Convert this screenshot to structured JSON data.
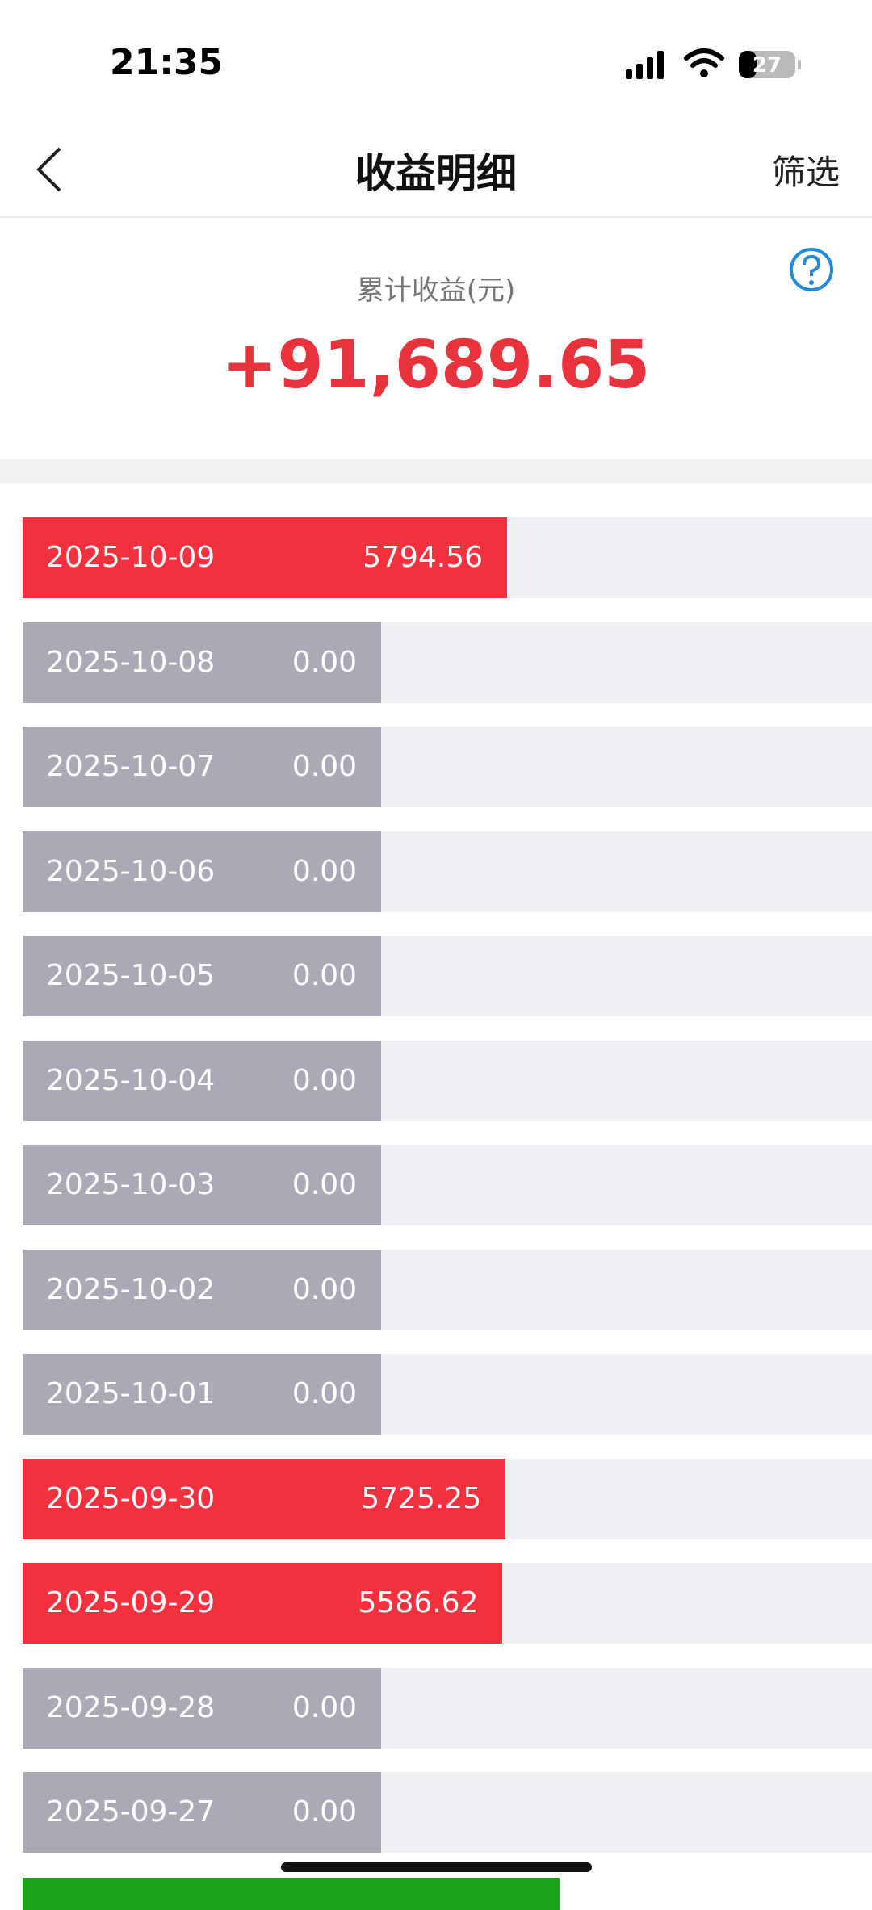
{
  "status_bar": {
    "time": "21:35",
    "battery": "27"
  },
  "nav": {
    "title": "收益明细",
    "filter": "筛选"
  },
  "summary": {
    "label": "累计收益(元)",
    "total": "+91,689.65"
  },
  "rows": [
    {
      "date": "2025-10-09",
      "amount": "5794.56"
    },
    {
      "date": "2025-10-08",
      "amount": "0.00"
    },
    {
      "date": "2025-10-07",
      "amount": "0.00"
    },
    {
      "date": "2025-10-06",
      "amount": "0.00"
    },
    {
      "date": "2025-10-05",
      "amount": "0.00"
    },
    {
      "date": "2025-10-04",
      "amount": "0.00"
    },
    {
      "date": "2025-10-03",
      "amount": "0.00"
    },
    {
      "date": "2025-10-02",
      "amount": "0.00"
    },
    {
      "date": "2025-10-01",
      "amount": "0.00"
    },
    {
      "date": "2025-09-30",
      "amount": "5725.25"
    },
    {
      "date": "2025-09-29",
      "amount": "5586.62"
    },
    {
      "date": "2025-09-28",
      "amount": "0.00"
    },
    {
      "date": "2025-09-27",
      "amount": "0.00"
    }
  ]
}
